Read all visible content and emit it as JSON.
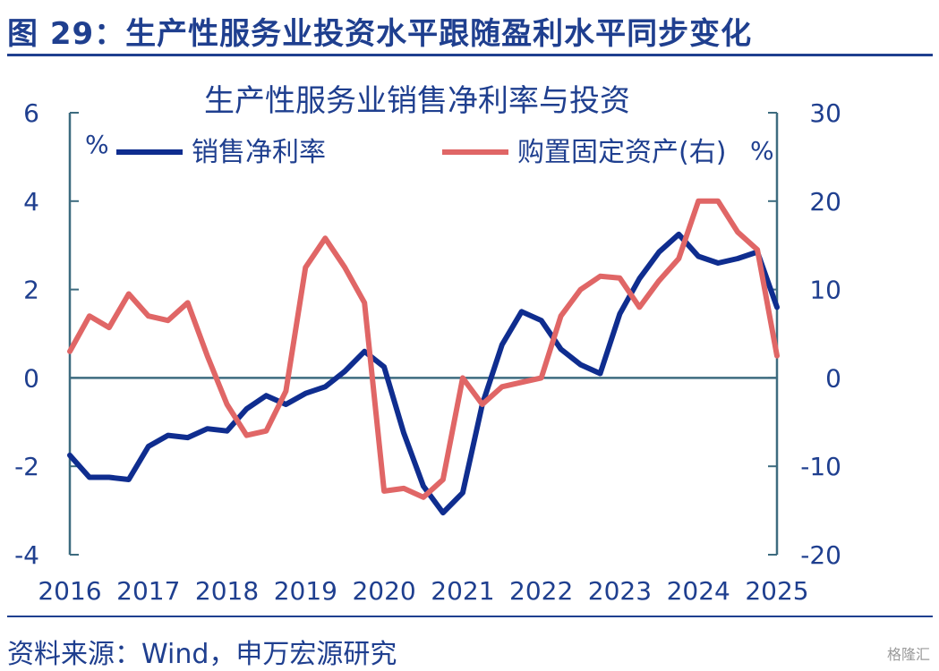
{
  "figure_title": "图 29：生产性服务业投资水平跟随盈利水平同步变化",
  "source_text": "资料来源：Wind，申万宏源研究",
  "watermark_text": "格隆汇",
  "colors": {
    "brand": "#1f3f8f",
    "axis": "#3d6b7f",
    "net_margin": "#0f2d8f",
    "fixed_assets": "#e06666"
  },
  "chart_data": {
    "type": "line",
    "title": "生产性服务业销售净利率与投资",
    "left_unit": "%",
    "right_unit": "%",
    "x_tick_labels": [
      "2016",
      "2017",
      "2018",
      "2019",
      "2020",
      "2021",
      "2022",
      "2023",
      "2024",
      "2025"
    ],
    "x_range": [
      2016,
      2025
    ],
    "y_left": {
      "ticks": [
        "-4",
        "-2",
        "0",
        "2",
        "4",
        "6"
      ],
      "range": [
        -4,
        6
      ]
    },
    "y_right": {
      "ticks": [
        "-20",
        "-10",
        "0",
        "10",
        "20",
        "30"
      ],
      "range": [
        -20,
        30
      ]
    },
    "legend_position": "top",
    "grid": false,
    "series": [
      {
        "name": "销售净利率",
        "axis": "left",
        "color": "#0f2d8f",
        "x": [
          2016.0,
          2016.25,
          2016.5,
          2016.75,
          2017.0,
          2017.25,
          2017.5,
          2017.75,
          2018.0,
          2018.25,
          2018.5,
          2018.75,
          2019.0,
          2019.25,
          2019.5,
          2019.75,
          2020.0,
          2020.25,
          2020.5,
          2020.75,
          2021.0,
          2021.25,
          2021.5,
          2021.75,
          2022.0,
          2022.25,
          2022.5,
          2022.75,
          2023.0,
          2023.25,
          2023.5,
          2023.75,
          2024.0,
          2024.25,
          2024.5,
          2024.75,
          2025.0
        ],
        "values": [
          -1.75,
          -2.25,
          -2.25,
          -2.3,
          -1.55,
          -1.3,
          -1.35,
          -1.15,
          -1.2,
          -0.7,
          -0.4,
          -0.6,
          -0.35,
          -0.2,
          0.15,
          0.6,
          0.25,
          -1.25,
          -2.45,
          -3.05,
          -2.6,
          -0.6,
          0.75,
          1.5,
          1.3,
          0.65,
          0.3,
          0.1,
          1.45,
          2.25,
          2.85,
          3.25,
          2.75,
          2.6,
          2.7,
          2.85,
          1.6
        ]
      },
      {
        "name": "购置固定资产(右)",
        "axis": "right",
        "color": "#e06666",
        "x": [
          2016.0,
          2016.25,
          2016.5,
          2016.75,
          2017.0,
          2017.25,
          2017.5,
          2017.75,
          2018.0,
          2018.25,
          2018.5,
          2018.75,
          2019.0,
          2019.25,
          2019.5,
          2019.75,
          2020.0,
          2020.25,
          2020.5,
          2020.75,
          2021.0,
          2021.25,
          2021.5,
          2021.75,
          2022.0,
          2022.25,
          2022.5,
          2022.75,
          2023.0,
          2023.25,
          2023.5,
          2023.75,
          2024.0,
          2024.25,
          2024.5,
          2024.75,
          2025.0
        ],
        "values": [
          3.0,
          7.0,
          5.7,
          9.5,
          7.0,
          6.5,
          8.5,
          2.5,
          -3.0,
          -6.5,
          -6.0,
          -1.5,
          12.5,
          15.8,
          12.5,
          8.5,
          -12.8,
          -12.5,
          -13.5,
          -11.5,
          0.0,
          -3.0,
          -1.0,
          -0.5,
          0.0,
          7.0,
          10.0,
          11.5,
          11.3,
          8.0,
          11.0,
          13.5,
          20.0,
          20.0,
          16.5,
          14.5,
          2.5
        ]
      }
    ]
  }
}
